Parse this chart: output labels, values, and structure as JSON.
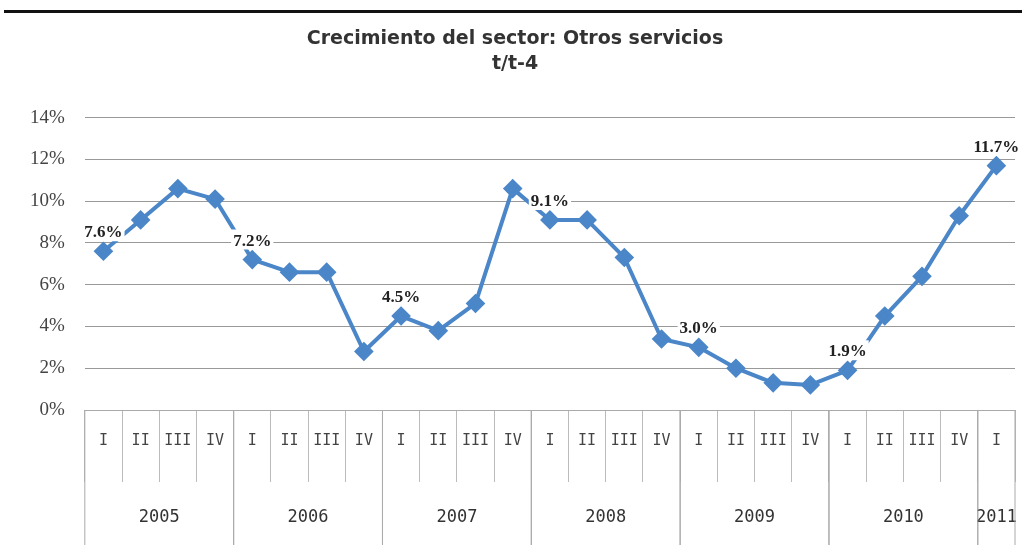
{
  "chart_data": {
    "type": "line",
    "title": "Crecimiento del sector: Otros servicios",
    "subtitle": "t/t-4",
    "categories": [
      "I",
      "II",
      "III",
      "IV",
      "I",
      "II",
      "III",
      "IV",
      "I",
      "II",
      "III",
      "IV",
      "I",
      "II",
      "III",
      "IV",
      "I",
      "II",
      "III",
      "IV",
      "I",
      "II",
      "III",
      "IV",
      "I"
    ],
    "series": [
      {
        "color": "#4a86c8",
        "values": [
          7.6,
          9.1,
          10.6,
          10.1,
          7.2,
          6.6,
          6.6,
          2.8,
          4.5,
          3.8,
          5.1,
          10.6,
          9.1,
          9.1,
          7.3,
          3.4,
          3.0,
          2.0,
          1.3,
          1.2,
          1.9,
          4.5,
          6.4,
          9.3,
          11.7
        ],
        "value_labels": [
          "7.6%",
          null,
          null,
          null,
          "7.2%",
          null,
          null,
          null,
          "4.5%",
          null,
          null,
          null,
          "9.1%",
          null,
          null,
          null,
          "3.0%",
          null,
          null,
          null,
          "1.9%",
          null,
          null,
          null,
          "11.7%"
        ]
      }
    ],
    "ylim": [
      0,
      14
    ],
    "yticks": [
      {
        "value": 0,
        "label": "0%"
      },
      {
        "value": 2,
        "label": "2%"
      },
      {
        "value": 4,
        "label": "4%"
      },
      {
        "value": 6,
        "label": "6%"
      },
      {
        "value": 8,
        "label": "8%"
      },
      {
        "value": 10,
        "label": "10%"
      },
      {
        "value": 12,
        "label": "12%"
      },
      {
        "value": 14,
        "label": "14%"
      }
    ],
    "annotations": [
      "2005",
      "2006",
      "2007",
      "2008",
      "2009",
      "2010",
      "2011"
    ],
    "grid": "y",
    "legend": false,
    "marker": "diamond",
    "line_style": "solid"
  }
}
